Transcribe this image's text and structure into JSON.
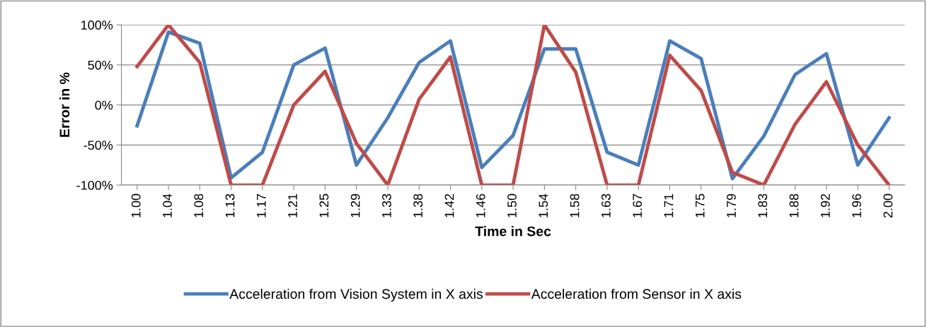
{
  "chart_data": {
    "type": "line",
    "xlabel": "Time in Sec",
    "ylabel": "Error in %",
    "categories": [
      "1.00",
      "1.04",
      "1.08",
      "1.13",
      "1.17",
      "1.21",
      "1.25",
      "1.29",
      "1.33",
      "1.38",
      "1.42",
      "1.46",
      "1.50",
      "1.54",
      "1.58",
      "1.63",
      "1.67",
      "1.71",
      "1.75",
      "1.79",
      "1.83",
      "1.88",
      "1.92",
      "1.96",
      "2.00"
    ],
    "series": [
      {
        "name": "Acceleration from Vision System in X axis",
        "color": "#4a7ebb",
        "values": [
          -26,
          91,
          77,
          -91,
          -59,
          50,
          71,
          -75,
          -16,
          53,
          80,
          -78,
          -38,
          70,
          70,
          -59,
          -75,
          80,
          58,
          -92,
          -39,
          38,
          64,
          -75,
          -16
        ]
      },
      {
        "name": "Acceleration from Sensor in X axis",
        "color": "#be4b48",
        "values": [
          48,
          100,
          53,
          -100,
          -100,
          0,
          42,
          -48,
          -100,
          7,
          60,
          -100,
          -100,
          100,
          41,
          -100,
          -100,
          62,
          18,
          -84,
          -100,
          -24,
          29,
          -50,
          -100
        ]
      }
    ],
    "ylim": [
      -100,
      100
    ],
    "yticks": [
      {
        "value": -100,
        "label": "-100%"
      },
      {
        "value": -50,
        "label": "-50%"
      },
      {
        "value": 0,
        "label": "0%"
      },
      {
        "value": 50,
        "label": "50%"
      },
      {
        "value": 100,
        "label": "100%"
      }
    ],
    "grid": "y",
    "legend": "bottom",
    "marker": "none",
    "line_style": "solid"
  }
}
